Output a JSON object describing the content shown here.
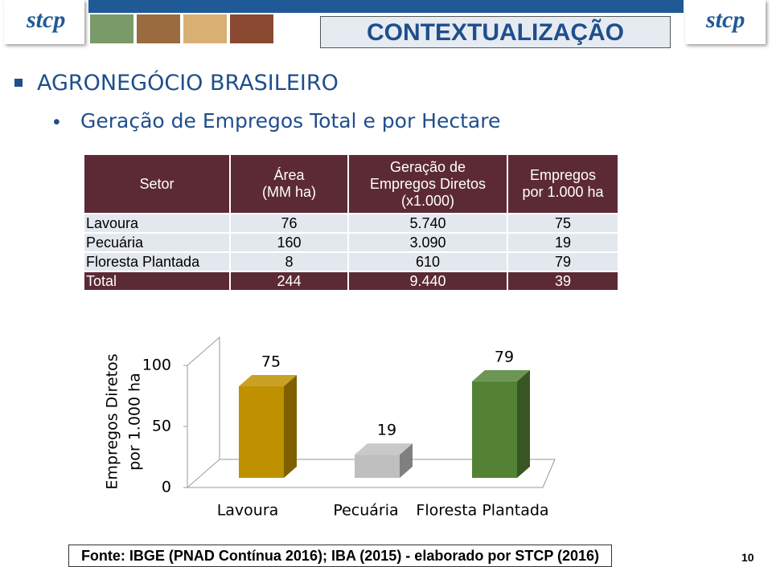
{
  "header": {
    "logo_left": "stcp",
    "title": "CONTEXTUALIZAÇÃO",
    "logo_right": "stcp"
  },
  "bullets": [
    "AGRONEGÓCIO BRASILEIRO",
    "Geração de Empregos Total e por Hectare"
  ],
  "table": {
    "columns": [
      [
        "Setor"
      ],
      [
        "Área",
        "(MM ha)"
      ],
      [
        "Geração de",
        "Empregos Diretos",
        "(x1.000)"
      ],
      [
        "Empregos",
        "por 1.000 ha"
      ]
    ],
    "rows": [
      [
        "Lavoura",
        "76",
        "5.740",
        "75"
      ],
      [
        "Pecuária",
        "160",
        "3.090",
        "19"
      ],
      [
        "Floresta Plantada",
        "8",
        "610",
        "79"
      ],
      [
        "Total",
        "244",
        "9.440",
        "39"
      ]
    ]
  },
  "chart_data": {
    "type": "bar",
    "y_label": [
      "Empregos Diretos",
      "por 1.000 ha"
    ],
    "categories": [
      "Lavoura",
      "Pecuária",
      "Floresta Plantada"
    ],
    "values": [
      75,
      19,
      79
    ],
    "colors": [
      "#bf9000",
      "#bfbfbf",
      "#548235"
    ],
    "side_colors": [
      "#7f6000",
      "#7f7f7f",
      "#375623"
    ],
    "ylim": [
      0,
      100
    ],
    "yticks": [
      0,
      50,
      100
    ]
  },
  "footer": {
    "source": "Fonte: IBGE (PNAD Contínua 2016); IBA (2015) - elaborado por STCP (2016)",
    "page": "10"
  }
}
